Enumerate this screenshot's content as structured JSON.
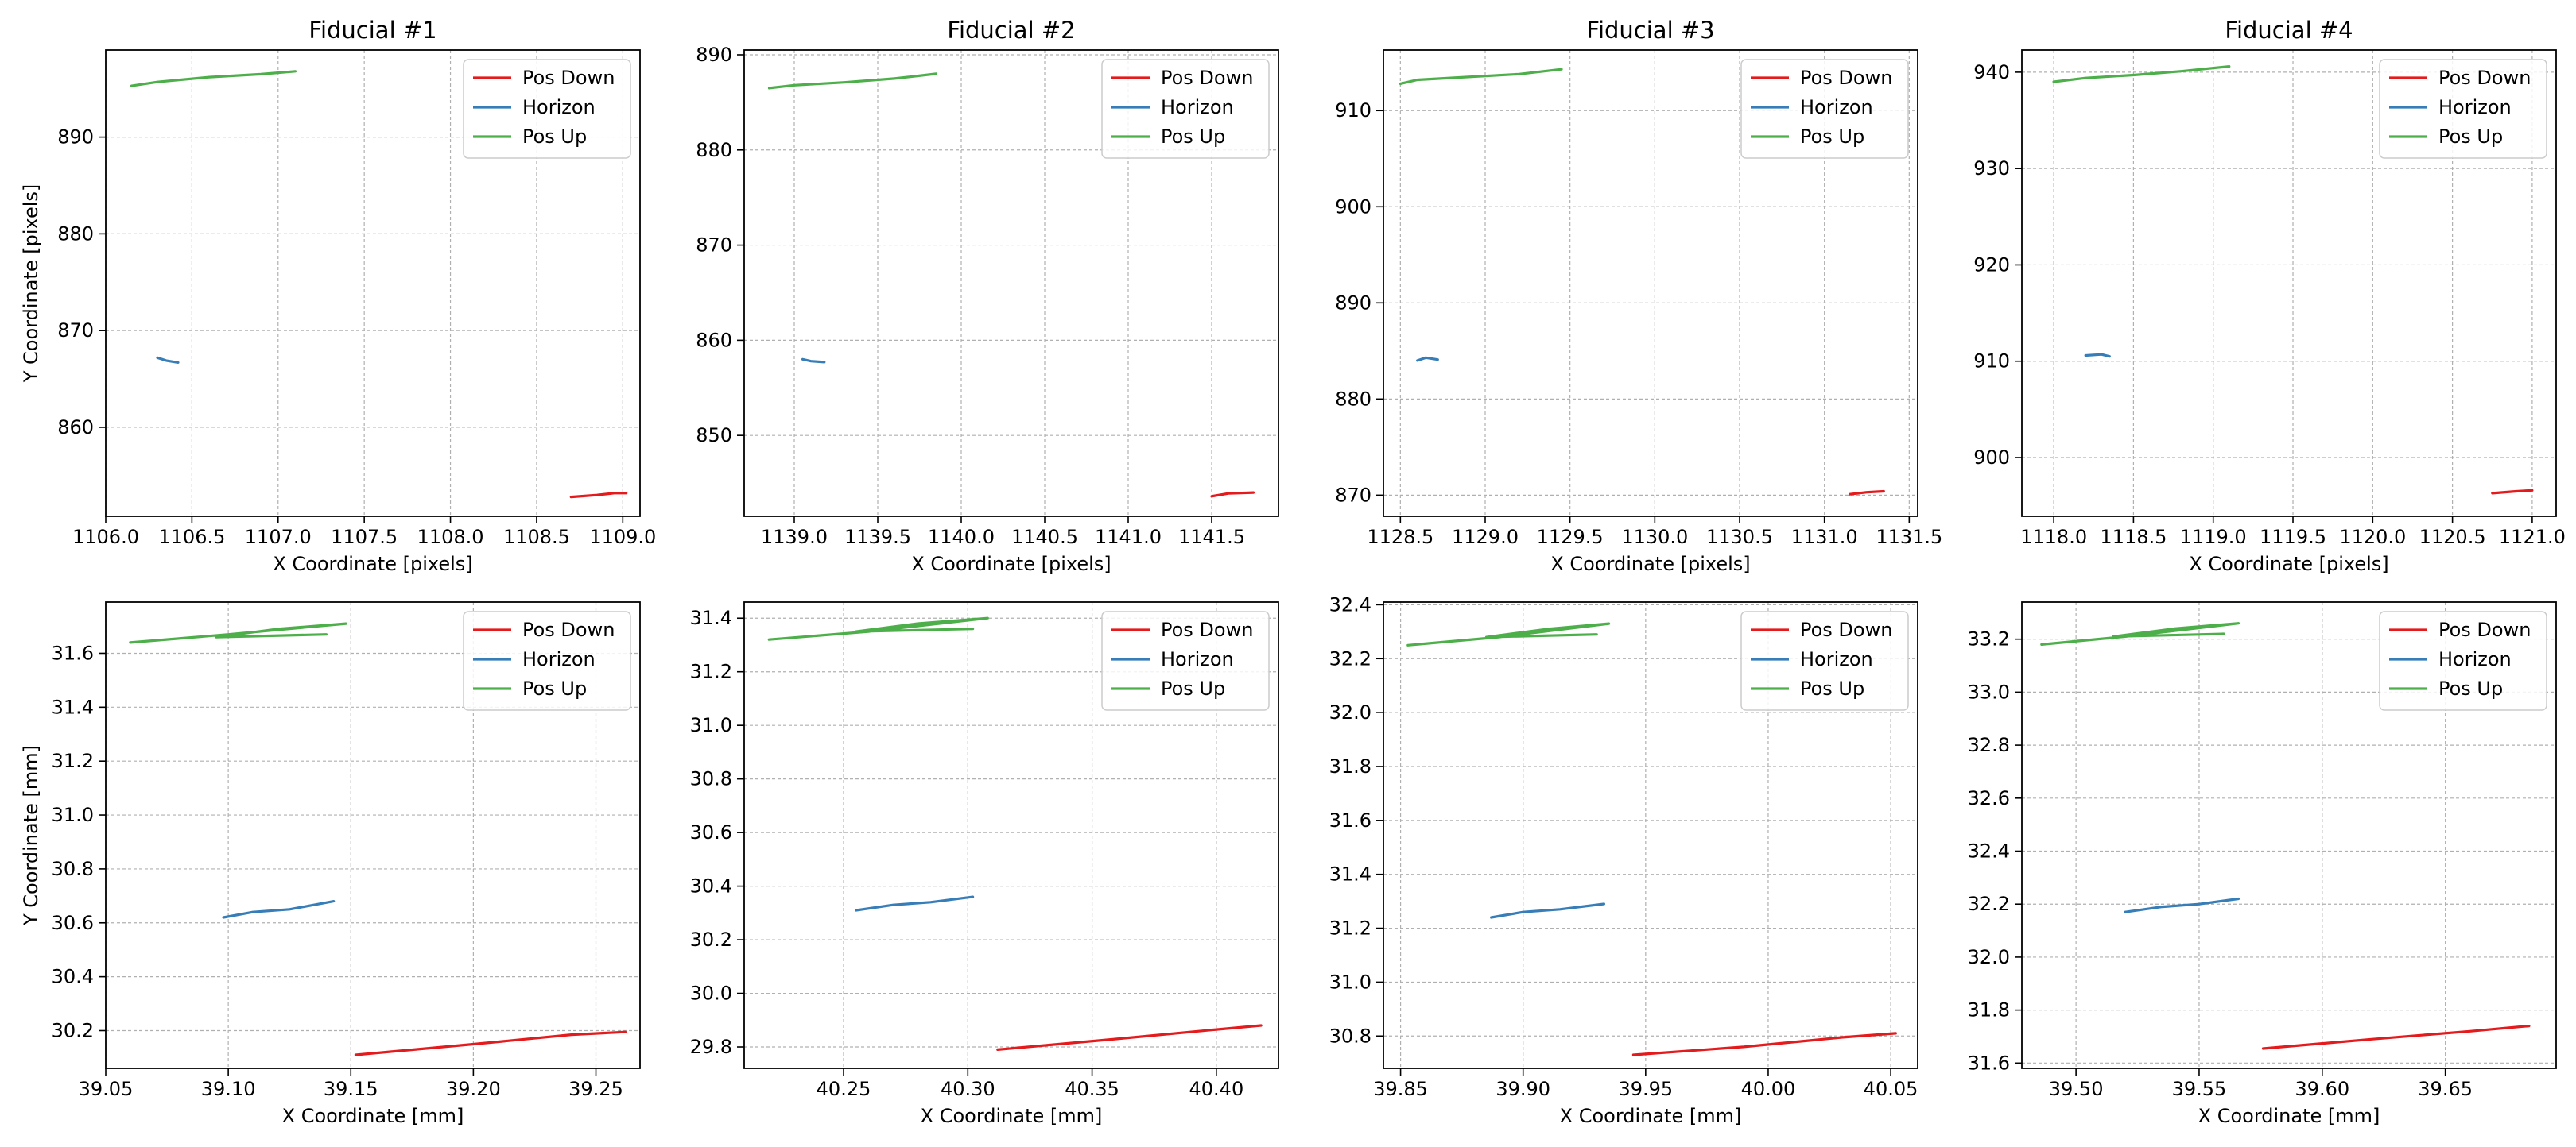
{
  "colors": {
    "pos_down": "#e41a1c",
    "horizon": "#377eb8",
    "pos_up": "#4daf4a",
    "grid": "#b0b0b0"
  },
  "chart_data": [
    {
      "type": "line",
      "title": "Fiducial #1",
      "xlabel": "X Coordinate [pixels]",
      "ylabel": "Y Coordinate [pixels]",
      "xlim": [
        1106.0,
        1109.1
      ],
      "ylim": [
        850.8,
        899.0
      ],
      "xticks": [
        "1106.0",
        "1106.5",
        "1107.0",
        "1107.5",
        "1108.0",
        "1108.5",
        "1109.0"
      ],
      "yticks": [
        "860",
        "870",
        "880",
        "890"
      ],
      "grid": true,
      "legend": "top-right",
      "series": [
        {
          "name": "Pos Down",
          "color": "#e41a1c",
          "points": [
            [
              1108.7,
              852.8
            ],
            [
              1108.85,
              853.0
            ],
            [
              1108.95,
              853.2
            ],
            [
              1109.02,
              853.2
            ]
          ]
        },
        {
          "name": "Horizon",
          "color": "#377eb8",
          "points": [
            [
              1106.3,
              867.2
            ],
            [
              1106.35,
              866.9
            ],
            [
              1106.42,
              866.7
            ]
          ]
        },
        {
          "name": "Pos Up",
          "color": "#4daf4a",
          "points": [
            [
              1106.15,
              895.3
            ],
            [
              1106.3,
              895.7
            ],
            [
              1106.6,
              896.2
            ],
            [
              1106.9,
              896.5
            ],
            [
              1107.1,
              896.8
            ]
          ]
        }
      ]
    },
    {
      "type": "line",
      "title": "Fiducial #2",
      "xlabel": "X Coordinate [pixels]",
      "ylabel": "",
      "xlim": [
        1138.7,
        1141.9
      ],
      "ylim": [
        841.5,
        890.5
      ],
      "xticks": [
        "1139.0",
        "1139.5",
        "1140.0",
        "1140.5",
        "1141.0",
        "1141.5"
      ],
      "yticks": [
        "850",
        "860",
        "870",
        "880",
        "890"
      ],
      "grid": true,
      "legend": "top-right",
      "series": [
        {
          "name": "Pos Down",
          "color": "#e41a1c",
          "points": [
            [
              1141.5,
              843.6
            ],
            [
              1141.6,
              843.9
            ],
            [
              1141.75,
              844.0
            ]
          ]
        },
        {
          "name": "Horizon",
          "color": "#377eb8",
          "points": [
            [
              1139.05,
              858.0
            ],
            [
              1139.1,
              857.8
            ],
            [
              1139.18,
              857.7
            ]
          ]
        },
        {
          "name": "Pos Up",
          "color": "#4daf4a",
          "points": [
            [
              1138.85,
              886.5
            ],
            [
              1139.0,
              886.8
            ],
            [
              1139.3,
              887.1
            ],
            [
              1139.6,
              887.5
            ],
            [
              1139.85,
              888.0
            ]
          ]
        }
      ]
    },
    {
      "type": "line",
      "title": "Fiducial #3",
      "xlabel": "X Coordinate [pixels]",
      "ylabel": "",
      "xlim": [
        1128.4,
        1131.55
      ],
      "ylim": [
        867.8,
        916.3
      ],
      "xticks": [
        "1128.5",
        "1129.0",
        "1129.5",
        "1130.0",
        "1130.5",
        "1131.0",
        "1131.5"
      ],
      "yticks": [
        "870",
        "880",
        "890",
        "900",
        "910"
      ],
      "grid": true,
      "legend": "top-right",
      "series": [
        {
          "name": "Pos Down",
          "color": "#e41a1c",
          "points": [
            [
              1131.15,
              870.1
            ],
            [
              1131.25,
              870.3
            ],
            [
              1131.35,
              870.4
            ]
          ]
        },
        {
          "name": "Horizon",
          "color": "#377eb8",
          "points": [
            [
              1128.6,
              884.0
            ],
            [
              1128.65,
              884.3
            ],
            [
              1128.72,
              884.1
            ]
          ]
        },
        {
          "name": "Pos Up",
          "color": "#4daf4a",
          "points": [
            [
              1128.5,
              912.8
            ],
            [
              1128.6,
              913.2
            ],
            [
              1128.9,
              913.5
            ],
            [
              1129.2,
              913.8
            ],
            [
              1129.45,
              914.3
            ]
          ]
        }
      ]
    },
    {
      "type": "line",
      "title": "Fiducial #4",
      "xlabel": "X Coordinate [pixels]",
      "ylabel": "",
      "xlim": [
        1117.8,
        1121.15
      ],
      "ylim": [
        893.9,
        942.3
      ],
      "xticks": [
        "1118.0",
        "1118.5",
        "1119.0",
        "1119.5",
        "1120.0",
        "1120.5",
        "1121.0"
      ],
      "yticks": [
        "900",
        "910",
        "920",
        "930",
        "940"
      ],
      "grid": true,
      "legend": "top-right",
      "series": [
        {
          "name": "Pos Down",
          "color": "#e41a1c",
          "points": [
            [
              1120.75,
              896.3
            ],
            [
              1120.9,
              896.5
            ],
            [
              1121.0,
              896.6
            ]
          ]
        },
        {
          "name": "Horizon",
          "color": "#377eb8",
          "points": [
            [
              1118.2,
              910.6
            ],
            [
              1118.3,
              910.7
            ],
            [
              1118.35,
              910.5
            ]
          ]
        },
        {
          "name": "Pos Up",
          "color": "#4daf4a",
          "points": [
            [
              1118.0,
              939.0
            ],
            [
              1118.2,
              939.4
            ],
            [
              1118.5,
              939.7
            ],
            [
              1118.8,
              940.1
            ],
            [
              1119.1,
              940.6
            ]
          ]
        }
      ]
    },
    {
      "type": "line",
      "title": "",
      "xlabel": "X Coordinate [mm]",
      "ylabel": "Y Coordinate [mm]",
      "xlim": [
        39.05,
        39.268
      ],
      "ylim": [
        30.06,
        31.79
      ],
      "xticks": [
        "39.05",
        "39.10",
        "39.15",
        "39.20",
        "39.25"
      ],
      "yticks": [
        "30.2",
        "30.4",
        "30.6",
        "30.8",
        "31.0",
        "31.2",
        "31.4",
        "31.6"
      ],
      "grid": true,
      "legend": "top-right",
      "series": [
        {
          "name": "Pos Down",
          "color": "#e41a1c",
          "points": [
            [
              39.152,
              30.11
            ],
            [
              39.2,
              30.15
            ],
            [
              39.24,
              30.185
            ],
            [
              39.262,
              30.195
            ]
          ]
        },
        {
          "name": "Horizon",
          "color": "#377eb8",
          "points": [
            [
              39.098,
              30.62
            ],
            [
              39.11,
              30.64
            ],
            [
              39.125,
              30.65
            ],
            [
              39.143,
              30.68
            ]
          ]
        },
        {
          "name": "Pos Up",
          "color": "#4daf4a",
          "points": [
            [
              39.06,
              31.64
            ],
            [
              39.1,
              31.67
            ],
            [
              39.148,
              31.71
            ],
            [
              39.12,
              31.69
            ],
            [
              39.095,
              31.66
            ],
            [
              39.14,
              31.67
            ]
          ]
        }
      ]
    },
    {
      "type": "line",
      "title": "",
      "xlabel": "X Coordinate [mm]",
      "ylabel": "",
      "xlim": [
        40.21,
        40.425
      ],
      "ylim": [
        29.72,
        31.46
      ],
      "xticks": [
        "40.25",
        "40.30",
        "40.35",
        "40.40"
      ],
      "yticks": [
        "29.8",
        "30.0",
        "30.2",
        "30.4",
        "30.6",
        "30.8",
        "31.0",
        "31.2",
        "31.4"
      ],
      "grid": true,
      "legend": "top-right",
      "series": [
        {
          "name": "Pos Down",
          "color": "#e41a1c",
          "points": [
            [
              40.312,
              29.79
            ],
            [
              40.36,
              29.83
            ],
            [
              40.4,
              29.865
            ],
            [
              40.418,
              29.88
            ]
          ]
        },
        {
          "name": "Horizon",
          "color": "#377eb8",
          "points": [
            [
              40.255,
              30.31
            ],
            [
              40.27,
              30.33
            ],
            [
              40.285,
              30.34
            ],
            [
              40.302,
              30.36
            ]
          ]
        },
        {
          "name": "Pos Up",
          "color": "#4daf4a",
          "points": [
            [
              40.22,
              31.32
            ],
            [
              40.26,
              31.35
            ],
            [
              40.308,
              31.4
            ],
            [
              40.28,
              31.38
            ],
            [
              40.255,
              31.35
            ],
            [
              40.302,
              31.36
            ]
          ]
        }
      ]
    },
    {
      "type": "line",
      "title": "",
      "xlabel": "X Coordinate [mm]",
      "ylabel": "",
      "xlim": [
        39.843,
        40.061
      ],
      "ylim": [
        30.68,
        32.41
      ],
      "xticks": [
        "39.85",
        "39.90",
        "39.95",
        "40.00",
        "40.05"
      ],
      "yticks": [
        "30.8",
        "31.0",
        "31.2",
        "31.4",
        "31.6",
        "31.8",
        "32.0",
        "32.2",
        "32.4"
      ],
      "grid": true,
      "legend": "top-right",
      "series": [
        {
          "name": "Pos Down",
          "color": "#e41a1c",
          "points": [
            [
              39.945,
              30.73
            ],
            [
              39.99,
              30.76
            ],
            [
              40.03,
              30.795
            ],
            [
              40.052,
              30.81
            ]
          ]
        },
        {
          "name": "Horizon",
          "color": "#377eb8",
          "points": [
            [
              39.887,
              31.24
            ],
            [
              39.9,
              31.26
            ],
            [
              39.915,
              31.27
            ],
            [
              39.933,
              31.29
            ]
          ]
        },
        {
          "name": "Pos Up",
          "color": "#4daf4a",
          "points": [
            [
              39.853,
              32.25
            ],
            [
              39.89,
              32.28
            ],
            [
              39.935,
              32.33
            ],
            [
              39.91,
              32.31
            ],
            [
              39.885,
              32.28
            ],
            [
              39.93,
              32.29
            ]
          ]
        }
      ]
    },
    {
      "type": "line",
      "title": "",
      "xlabel": "X Coordinate [mm]",
      "ylabel": "",
      "xlim": [
        39.478,
        39.695
      ],
      "ylim": [
        31.58,
        33.34
      ],
      "xticks": [
        "39.50",
        "39.55",
        "39.60",
        "39.65"
      ],
      "yticks": [
        "31.6",
        "31.8",
        "32.0",
        "32.2",
        "32.4",
        "32.6",
        "32.8",
        "33.0",
        "33.2"
      ],
      "grid": true,
      "legend": "top-right",
      "series": [
        {
          "name": "Pos Down",
          "color": "#e41a1c",
          "points": [
            [
              39.576,
              31.655
            ],
            [
              39.62,
              31.69
            ],
            [
              39.66,
              31.72
            ],
            [
              39.684,
              31.74
            ]
          ]
        },
        {
          "name": "Horizon",
          "color": "#377eb8",
          "points": [
            [
              39.52,
              32.17
            ],
            [
              39.535,
              32.19
            ],
            [
              39.55,
              32.2
            ],
            [
              39.566,
              32.22
            ]
          ]
        },
        {
          "name": "Pos Up",
          "color": "#4daf4a",
          "points": [
            [
              39.486,
              33.18
            ],
            [
              39.52,
              33.21
            ],
            [
              39.566,
              33.26
            ],
            [
              39.54,
              33.24
            ],
            [
              39.515,
              33.21
            ],
            [
              39.56,
              33.22
            ]
          ]
        }
      ]
    }
  ]
}
